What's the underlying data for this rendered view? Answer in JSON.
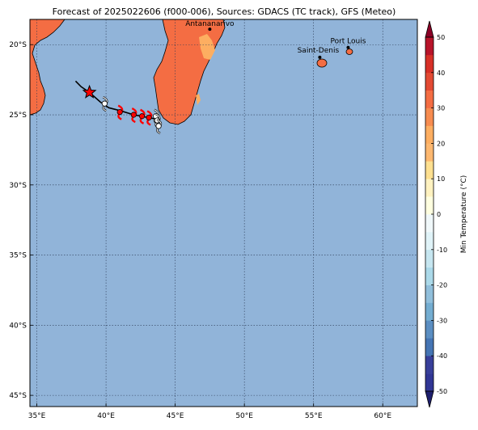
{
  "map": {
    "title": "Forecast of 2025022606 (f000-006), Sources: GDACS (TC track), GFS (Meteo)",
    "lon_range": [
      34.5,
      62.5
    ],
    "lat_range": [
      -45.8,
      -18.2
    ],
    "lon_ticks": [
      {
        "value": 35,
        "label": "35°E"
      },
      {
        "value": 40,
        "label": "40°E"
      },
      {
        "value": 45,
        "label": "45°E"
      },
      {
        "value": 50,
        "label": "50°E"
      },
      {
        "value": 55,
        "label": "55°E"
      },
      {
        "value": 60,
        "label": "60°E"
      }
    ],
    "lat_ticks": [
      {
        "value": -20,
        "label": "20°S"
      },
      {
        "value": -25,
        "label": "25°S"
      },
      {
        "value": -30,
        "label": "30°S"
      },
      {
        "value": -35,
        "label": "35°S"
      },
      {
        "value": -40,
        "label": "40°S"
      },
      {
        "value": -45,
        "label": "45°S"
      }
    ],
    "grid": true,
    "ocean_color": "#91b4d9",
    "land_color": "#f46d43",
    "highland_color": "#fdae61",
    "cities": [
      {
        "name": "Antananarivo",
        "lon": 47.5,
        "lat": -18.9
      },
      {
        "name": "Port Louis",
        "lon": 57.5,
        "lat": -20.2
      },
      {
        "name": "Saint-Denis",
        "lon": 55.45,
        "lat": -20.9
      }
    ],
    "storm_track": [
      [
        37.8,
        -22.6
      ],
      [
        38.2,
        -23.0
      ],
      [
        38.8,
        -23.4
      ],
      [
        39.6,
        -24.1
      ],
      [
        40.2,
        -24.5
      ],
      [
        41.0,
        -24.7
      ],
      [
        42.0,
        -25.0
      ],
      [
        42.8,
        -25.15
      ],
      [
        43.6,
        -25.3
      ]
    ],
    "storm_current_position": {
      "lon": 38.8,
      "lat": -23.4
    },
    "wind_barbs_red": [
      [
        41.0,
        -24.8
      ],
      [
        42.0,
        -25.0
      ],
      [
        42.6,
        -25.1
      ],
      [
        43.1,
        -25.2
      ]
    ],
    "wind_barbs_white": [
      [
        39.9,
        -24.2
      ],
      [
        43.6,
        -25.1
      ],
      [
        43.7,
        -25.4
      ],
      [
        43.8,
        -25.8
      ]
    ],
    "colorbar": {
      "label": "Min Temperature (°C)",
      "ticks": [
        50,
        40,
        30,
        20,
        10,
        0,
        -10,
        -20,
        -30,
        -40,
        -50
      ],
      "levels": [
        -50,
        -45,
        -40,
        -35,
        -30,
        -25,
        -20,
        -15,
        -10,
        -5,
        0,
        5,
        10,
        15,
        20,
        25,
        30,
        35,
        40,
        45,
        50
      ],
      "colors": [
        "#313695",
        "#383f9a",
        "#4575b4",
        "#5b8ec2",
        "#74add1",
        "#91bfdb",
        "#abd9e9",
        "#c6e6f0",
        "#e0f3f8",
        "#f0f8fa",
        "#ffffe0",
        "#fff2c0",
        "#fee090",
        "#fdb870",
        "#fdae61",
        "#f78c50",
        "#f46d43",
        "#e34a33",
        "#d73027",
        "#b8142a"
      ],
      "extend_low_color": "#1e1f6e",
      "extend_high_color": "#8b0026"
    }
  }
}
